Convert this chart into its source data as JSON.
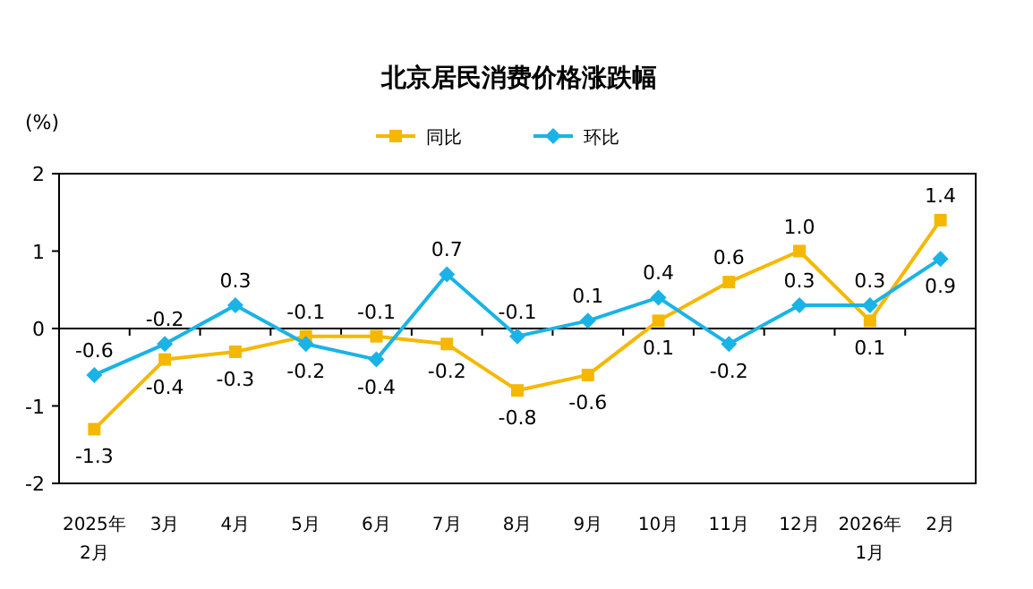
{
  "chart_data": {
    "type": "line",
    "title": "北京居民消费价格涨跌幅",
    "ylabel": "(%)",
    "categories": [
      "2025年\n2月",
      "3月",
      "4月",
      "5月",
      "6月",
      "7月",
      "8月",
      "9月",
      "10月",
      "11月",
      "12月",
      "2026年\n1月",
      "2月"
    ],
    "series": [
      {
        "name": "同比",
        "color": "#f5b800",
        "marker": "square",
        "values": [
          -1.3,
          -0.4,
          -0.3,
          -0.1,
          -0.1,
          -0.2,
          -0.8,
          -0.6,
          0.1,
          0.6,
          1.0,
          0.1,
          1.4
        ]
      },
      {
        "name": "环比",
        "color": "#1ab3e6",
        "marker": "diamond",
        "values": [
          -0.6,
          -0.2,
          0.3,
          -0.2,
          -0.4,
          0.7,
          -0.1,
          0.1,
          0.4,
          -0.2,
          0.3,
          0.3,
          0.9
        ]
      }
    ],
    "value_labels": [
      [
        "-1.3",
        "-0.4",
        "-0.3",
        "-0.1",
        "-0.1",
        "-0.2",
        "-0.8",
        "-0.6",
        "0.1",
        "0.6",
        "1.0",
        "0.1",
        "1.4"
      ],
      [
        "-0.6",
        "-0.2",
        "0.3",
        "-0.2",
        "-0.4",
        "0.7",
        "-0.1",
        "0.1",
        "0.4",
        "-0.2",
        "0.3",
        "0.3",
        "0.9"
      ]
    ],
    "ref_lines": [
      {
        "axis": "y",
        "value": 0,
        "color": "#000000"
      }
    ],
    "ylim": [
      -2,
      2
    ],
    "yticks": [
      -2,
      -1,
      0,
      1,
      2
    ],
    "legend": "top",
    "line_style": "solid"
  }
}
